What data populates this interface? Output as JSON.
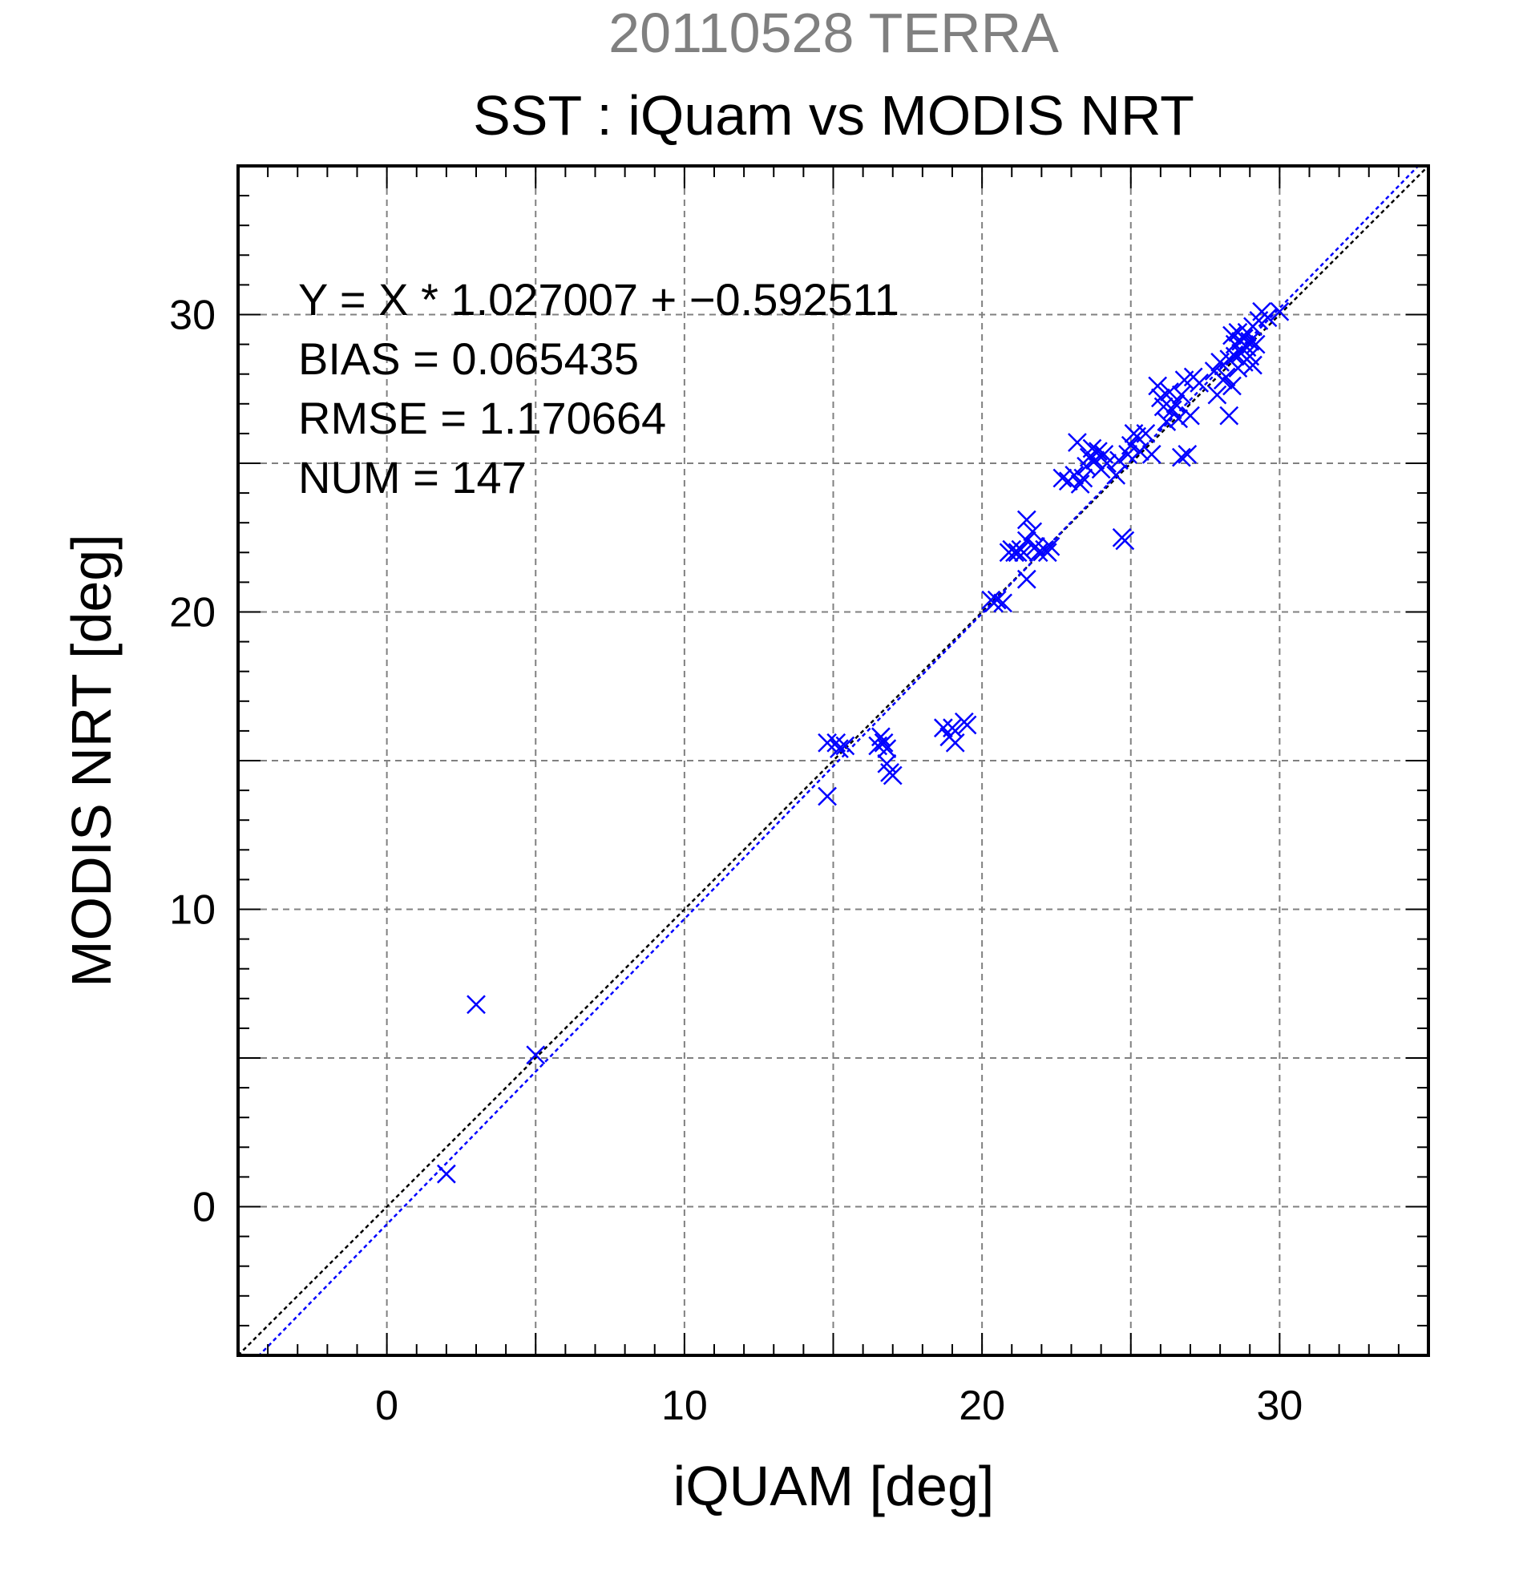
{
  "chart_data": {
    "type": "scatter",
    "suptitle": "20110528 TERRA",
    "title": "SST : iQuam vs MODIS NRT",
    "xlabel": "iQUAM [deg]",
    "ylabel": "MODIS NRT [deg]",
    "xlim": [
      -5,
      35
    ],
    "ylim": [
      -5,
      35
    ],
    "xticks": [
      0,
      10,
      20,
      30
    ],
    "yticks": [
      0,
      10,
      20,
      30
    ],
    "minor_tick_step": 1,
    "grid": true,
    "colors": {
      "points": "#0000ff",
      "fit_line": "#0000ff",
      "identity_line": "#000000",
      "grid": "#808080",
      "suptitle": "#808080"
    },
    "stats": [
      "Y = X * 1.027007 + −0.592511",
      "BIAS = 0.065435",
      "RMSE = 1.170664",
      "NUM = 147"
    ],
    "fit": {
      "slope": 1.027007,
      "intercept": -0.592511
    },
    "points": [
      [
        2.0,
        1.1
      ],
      [
        3.0,
        6.8
      ],
      [
        5.0,
        5.1
      ],
      [
        14.8,
        13.8
      ],
      [
        14.8,
        15.6
      ],
      [
        15.1,
        15.6
      ],
      [
        15.2,
        15.4
      ],
      [
        15.4,
        15.5
      ],
      [
        16.5,
        15.5
      ],
      [
        16.6,
        15.8
      ],
      [
        16.7,
        15.6
      ],
      [
        16.8,
        15.4
      ],
      [
        16.8,
        14.9
      ],
      [
        16.9,
        14.6
      ],
      [
        17.0,
        14.5
      ],
      [
        18.7,
        16.1
      ],
      [
        18.9,
        15.8
      ],
      [
        19.0,
        16.1
      ],
      [
        19.1,
        15.6
      ],
      [
        19.4,
        16.3
      ],
      [
        19.5,
        16.2
      ],
      [
        20.3,
        20.4
      ],
      [
        20.4,
        20.3
      ],
      [
        20.5,
        20.4
      ],
      [
        20.7,
        20.3
      ],
      [
        20.9,
        22.0
      ],
      [
        21.0,
        22.1
      ],
      [
        21.1,
        22.0
      ],
      [
        21.2,
        22.0
      ],
      [
        21.3,
        22.1
      ],
      [
        21.4,
        22.0
      ],
      [
        21.5,
        22.4
      ],
      [
        21.5,
        23.1
      ],
      [
        21.5,
        21.1
      ],
      [
        21.7,
        22.7
      ],
      [
        21.8,
        22.2
      ],
      [
        21.9,
        22.0
      ],
      [
        22.1,
        22.1
      ],
      [
        22.2,
        22.0
      ],
      [
        22.3,
        22.2
      ],
      [
        22.7,
        24.5
      ],
      [
        22.9,
        24.4
      ],
      [
        23.1,
        24.6
      ],
      [
        23.2,
        25.7
      ],
      [
        23.3,
        24.3
      ],
      [
        23.4,
        24.5
      ],
      [
        23.5,
        24.9
      ],
      [
        23.6,
        25.2
      ],
      [
        23.7,
        25.5
      ],
      [
        23.8,
        25.1
      ],
      [
        23.9,
        25.4
      ],
      [
        24.0,
        24.8
      ],
      [
        24.1,
        25.3
      ],
      [
        24.2,
        25.0
      ],
      [
        24.5,
        24.6
      ],
      [
        24.6,
        25.1
      ],
      [
        24.7,
        22.5
      ],
      [
        24.8,
        22.4
      ],
      [
        24.9,
        25.3
      ],
      [
        25.0,
        25.6
      ],
      [
        25.1,
        26.0
      ],
      [
        25.2,
        25.9
      ],
      [
        25.3,
        25.4
      ],
      [
        25.5,
        26.0
      ],
      [
        25.7,
        25.3
      ],
      [
        25.9,
        27.6
      ],
      [
        26.0,
        27.2
      ],
      [
        26.1,
        26.9
      ],
      [
        26.2,
        26.4
      ],
      [
        26.3,
        27.4
      ],
      [
        26.4,
        26.8
      ],
      [
        26.5,
        27.0
      ],
      [
        26.6,
        26.5
      ],
      [
        26.7,
        27.3
      ],
      [
        26.7,
        25.2
      ],
      [
        26.8,
        27.8
      ],
      [
        26.9,
        25.3
      ],
      [
        27.0,
        26.6
      ],
      [
        27.1,
        27.9
      ],
      [
        27.3,
        27.7
      ],
      [
        27.8,
        28.1
      ],
      [
        27.9,
        27.3
      ],
      [
        28.0,
        28.4
      ],
      [
        28.1,
        27.8
      ],
      [
        28.2,
        27.9
      ],
      [
        28.3,
        28.5
      ],
      [
        28.3,
        26.6
      ],
      [
        28.4,
        27.6
      ],
      [
        28.4,
        29.3
      ],
      [
        28.5,
        29.0
      ],
      [
        28.5,
        28.6
      ],
      [
        28.6,
        28.2
      ],
      [
        28.6,
        29.4
      ],
      [
        28.7,
        28.7
      ],
      [
        28.7,
        29.1
      ],
      [
        28.8,
        28.4
      ],
      [
        28.8,
        29.2
      ],
      [
        28.9,
        28.9
      ],
      [
        28.9,
        29.4
      ],
      [
        29.0,
        28.6
      ],
      [
        29.0,
        29.1
      ],
      [
        29.1,
        28.3
      ],
      [
        29.1,
        29.6
      ],
      [
        29.2,
        29.0
      ],
      [
        29.3,
        29.8
      ],
      [
        29.4,
        30.1
      ],
      [
        29.6,
        29.9
      ],
      [
        30.0,
        30.1
      ]
    ]
  }
}
